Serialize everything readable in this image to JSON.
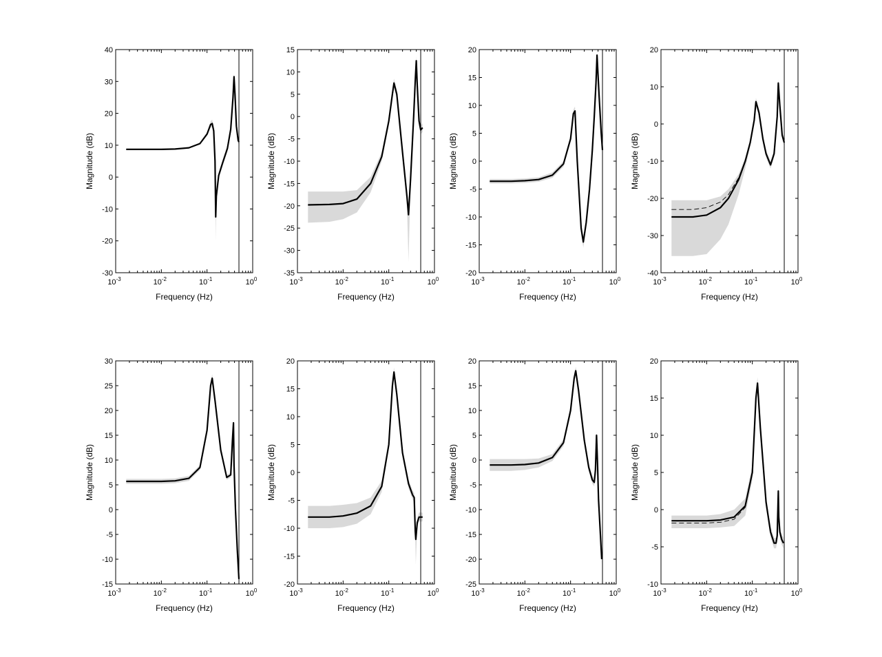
{
  "figure": {
    "xlabel": "Frequency (Hz)",
    "ylabel": "Magnitude (dB)",
    "x_tick_labels": [
      "10^-3",
      "10^-2",
      "10^-1",
      "10^0"
    ],
    "colors": {
      "band": "#d9d9d9",
      "line": "#000000",
      "axes": "#000000",
      "background": "#ffffff"
    }
  },
  "chart_data": [
    {
      "type": "line",
      "xscale": "log",
      "xlim": [
        0.001,
        1
      ],
      "ylim": [
        -30,
        40
      ],
      "yticks": [
        40,
        30,
        20,
        10,
        0,
        -10,
        -20,
        -30
      ],
      "xlabel": "Frequency (Hz)",
      "ylabel": "Magnitude (dB)",
      "vline_x": 0.5,
      "grid": false,
      "x": [
        0.0017,
        0.005,
        0.01,
        0.02,
        0.04,
        0.07,
        0.1,
        0.12,
        0.13,
        0.14,
        0.15,
        0.155,
        0.16,
        0.18,
        0.22,
        0.28,
        0.33,
        0.37,
        0.39,
        0.41,
        0.44,
        0.48,
        0.5
      ],
      "series": [
        {
          "role": "estimate",
          "values": [
            8.7,
            8.7,
            8.7,
            8.8,
            9.2,
            10.5,
            13.5,
            16.5,
            16.8,
            14.5,
            5.0,
            -12.5,
            -6.0,
            0.5,
            4.5,
            9.0,
            15.0,
            25.0,
            31.5,
            26.0,
            16.0,
            11.5,
            11.0
          ]
        },
        {
          "role": "band_upper",
          "values": [
            8.9,
            8.9,
            8.9,
            9.0,
            9.4,
            10.8,
            14.0,
            17.5,
            18.0,
            15.5,
            6.0,
            -8.0,
            -4.5,
            1.5,
            5.5,
            10.0,
            16.0,
            26.0,
            32.5,
            27.0,
            17.0,
            12.5,
            11.5
          ]
        },
        {
          "role": "band_lower",
          "values": [
            8.5,
            8.5,
            8.5,
            8.6,
            9.0,
            10.2,
            13.0,
            15.5,
            15.6,
            13.5,
            4.0,
            -20.0,
            -7.5,
            -0.5,
            3.5,
            8.0,
            14.0,
            24.0,
            30.5,
            25.0,
            15.0,
            10.5,
            10.5
          ]
        }
      ]
    },
    {
      "type": "line",
      "xscale": "log",
      "xlim": [
        0.001,
        1
      ],
      "ylim": [
        -35,
        15
      ],
      "yticks": [
        15,
        10,
        5,
        0,
        -5,
        -10,
        -15,
        -20,
        -25,
        -30,
        -35
      ],
      "xlabel": "Frequency (Hz)",
      "ylabel": "Magnitude (dB)",
      "vline_x": 0.5,
      "grid": false,
      "x": [
        0.0017,
        0.005,
        0.01,
        0.02,
        0.04,
        0.07,
        0.1,
        0.12,
        0.13,
        0.15,
        0.2,
        0.25,
        0.27,
        0.3,
        0.35,
        0.38,
        0.4,
        0.42,
        0.46,
        0.5,
        0.55
      ],
      "series": [
        {
          "role": "estimate",
          "values": [
            -19.8,
            -19.7,
            -19.5,
            -18.5,
            -15.0,
            -9.0,
            -1.0,
            5.0,
            7.5,
            5.0,
            -8.0,
            -18.0,
            -22.0,
            -14.0,
            0.0,
            8.0,
            12.5,
            7.0,
            -1.0,
            -3.0,
            -2.5
          ]
        },
        {
          "role": "band_upper",
          "values": [
            -16.8,
            -16.8,
            -16.8,
            -16.5,
            -13.5,
            -8.0,
            0.0,
            6.0,
            8.5,
            6.0,
            -7.0,
            -17.0,
            -20.0,
            -13.0,
            1.0,
            9.0,
            13.5,
            8.0,
            0.0,
            -2.0,
            -1.5
          ]
        },
        {
          "role": "band_lower",
          "values": [
            -23.8,
            -23.6,
            -23.0,
            -21.5,
            -17.0,
            -10.0,
            -2.0,
            4.0,
            6.5,
            4.0,
            -9.0,
            -20.0,
            -32.5,
            -15.0,
            -1.0,
            7.0,
            11.5,
            6.0,
            -2.0,
            -4.0,
            -3.5
          ]
        }
      ]
    },
    {
      "type": "line",
      "xscale": "log",
      "xlim": [
        0.001,
        1
      ],
      "ylim": [
        -20,
        20
      ],
      "yticks": [
        20,
        15,
        10,
        5,
        0,
        -5,
        -10,
        -15,
        -20
      ],
      "xlabel": "Frequency (Hz)",
      "ylabel": "Magnitude (dB)",
      "vline_x": 0.5,
      "grid": false,
      "x": [
        0.0017,
        0.005,
        0.01,
        0.02,
        0.04,
        0.07,
        0.1,
        0.115,
        0.125,
        0.14,
        0.17,
        0.19,
        0.22,
        0.26,
        0.3,
        0.33,
        0.36,
        0.38,
        0.42,
        0.47,
        0.5
      ],
      "series": [
        {
          "role": "estimate",
          "values": [
            -3.6,
            -3.6,
            -3.5,
            -3.3,
            -2.5,
            -0.5,
            4.0,
            8.5,
            9.0,
            0.0,
            -12.0,
            -14.5,
            -11.0,
            -5.0,
            2.0,
            8.0,
            14.0,
            19.0,
            12.0,
            5.0,
            2.0
          ]
        },
        {
          "role": "band_upper",
          "values": [
            -3.2,
            -3.2,
            -3.1,
            -2.9,
            -2.0,
            0.0,
            4.5,
            9.2,
            9.8,
            0.8,
            -11.0,
            -13.5,
            -10.2,
            -4.3,
            2.7,
            8.7,
            14.7,
            19.7,
            12.7,
            5.7,
            2.7
          ]
        },
        {
          "role": "band_lower",
          "values": [
            -4.0,
            -4.0,
            -3.9,
            -3.7,
            -3.0,
            -1.0,
            3.5,
            7.8,
            8.2,
            -0.8,
            -13.0,
            -15.5,
            -11.8,
            -5.7,
            1.3,
            7.3,
            13.3,
            18.3,
            11.3,
            4.3,
            1.3
          ]
        }
      ]
    },
    {
      "type": "line",
      "xscale": "log",
      "xlim": [
        0.001,
        1
      ],
      "ylim": [
        -40,
        20
      ],
      "yticks": [
        20,
        10,
        0,
        -10,
        -20,
        -30,
        -40
      ],
      "xlabel": "Frequency (Hz)",
      "ylabel": "Magnitude (dB)",
      "vline_x": 0.5,
      "grid": false,
      "x": [
        0.0017,
        0.005,
        0.01,
        0.02,
        0.03,
        0.05,
        0.07,
        0.09,
        0.11,
        0.12,
        0.14,
        0.17,
        0.2,
        0.25,
        0.3,
        0.35,
        0.37,
        0.4,
        0.45,
        0.5
      ],
      "series": [
        {
          "role": "estimate",
          "values": [
            -25.0,
            -25.0,
            -24.5,
            -22.5,
            -20.0,
            -15.0,
            -10.0,
            -5.0,
            1.0,
            6.0,
            3.0,
            -4.0,
            -8.0,
            -11.0,
            -8.0,
            2.0,
            11.0,
            5.0,
            -3.0,
            -5.0
          ]
        },
        {
          "role": "reference",
          "values": [
            -23.0,
            -23.0,
            -22.5,
            -21.0,
            -19.0,
            -14.5,
            -10.0,
            -5.0,
            1.0,
            6.0,
            3.0,
            -4.0,
            -8.0,
            -11.0,
            -8.0,
            2.0,
            11.0,
            5.0,
            -3.0,
            -5.0
          ]
        },
        {
          "role": "band_upper",
          "values": [
            -20.5,
            -20.5,
            -20.5,
            -19.5,
            -17.5,
            -13.5,
            -9.0,
            -4.0,
            2.0,
            7.0,
            4.0,
            -3.0,
            -7.0,
            -10.0,
            -7.0,
            3.0,
            12.0,
            6.0,
            -2.0,
            -4.0
          ]
        },
        {
          "role": "band_lower",
          "values": [
            -35.5,
            -35.5,
            -35.0,
            -31.0,
            -27.0,
            -19.0,
            -12.0,
            -6.0,
            0.0,
            5.0,
            2.0,
            -5.0,
            -9.0,
            -12.0,
            -9.0,
            1.0,
            10.0,
            4.0,
            -4.0,
            -6.0
          ]
        }
      ]
    },
    {
      "type": "line",
      "xscale": "log",
      "xlim": [
        0.001,
        1
      ],
      "ylim": [
        -15,
        30
      ],
      "yticks": [
        30,
        25,
        20,
        15,
        10,
        5,
        0,
        -5,
        -10,
        -15
      ],
      "xlabel": "Frequency (Hz)",
      "ylabel": "Magnitude (dB)",
      "vline_x": 0.5,
      "grid": false,
      "x": [
        0.0017,
        0.005,
        0.01,
        0.02,
        0.04,
        0.07,
        0.1,
        0.12,
        0.13,
        0.15,
        0.2,
        0.27,
        0.33,
        0.36,
        0.38,
        0.39,
        0.42,
        0.46,
        0.5
      ],
      "series": [
        {
          "role": "estimate",
          "values": [
            5.7,
            5.7,
            5.7,
            5.8,
            6.3,
            8.5,
            16.0,
            25.0,
            26.5,
            22.0,
            12.0,
            6.5,
            7.0,
            14.0,
            17.5,
            9.0,
            0.0,
            -8.0,
            -14.0
          ]
        },
        {
          "role": "band_upper",
          "values": [
            6.2,
            6.2,
            6.2,
            6.3,
            6.8,
            9.0,
            16.6,
            25.7,
            27.3,
            22.7,
            12.6,
            7.0,
            7.5,
            14.6,
            18.1,
            9.6,
            0.6,
            -7.4,
            -13.4
          ]
        },
        {
          "role": "band_lower",
          "values": [
            5.2,
            5.2,
            5.2,
            5.3,
            5.8,
            8.0,
            15.4,
            24.3,
            25.7,
            21.3,
            11.4,
            6.0,
            6.5,
            13.4,
            16.9,
            8.4,
            -0.6,
            -8.6,
            -14.6
          ]
        }
      ]
    },
    {
      "type": "line",
      "xscale": "log",
      "xlim": [
        0.001,
        1
      ],
      "ylim": [
        -20,
        20
      ],
      "yticks": [
        20,
        15,
        10,
        5,
        0,
        -5,
        -10,
        -15,
        -20
      ],
      "xlabel": "Frequency (Hz)",
      "ylabel": "Magnitude (dB)",
      "vline_x": 0.5,
      "grid": false,
      "x": [
        0.0017,
        0.005,
        0.01,
        0.02,
        0.04,
        0.07,
        0.1,
        0.12,
        0.13,
        0.15,
        0.2,
        0.27,
        0.33,
        0.36,
        0.38,
        0.39,
        0.42,
        0.46,
        0.5,
        0.55
      ],
      "series": [
        {
          "role": "estimate",
          "values": [
            -8.0,
            -8.0,
            -7.8,
            -7.3,
            -6.0,
            -2.5,
            5.0,
            15.5,
            18.0,
            14.0,
            3.5,
            -2.0,
            -4.0,
            -4.5,
            -10.5,
            -12.0,
            -9.0,
            -8.0,
            -8.0,
            -8.0
          ]
        },
        {
          "role": "band_upper",
          "values": [
            -6.0,
            -6.0,
            -5.8,
            -5.5,
            -4.5,
            -1.5,
            5.8,
            16.3,
            18.8,
            14.8,
            4.3,
            -1.2,
            -3.2,
            -3.7,
            -9.5,
            -11.0,
            -8.2,
            -7.2,
            -7.2,
            -7.2
          ]
        },
        {
          "role": "band_lower",
          "values": [
            -10.0,
            -10.0,
            -9.8,
            -9.2,
            -7.5,
            -3.5,
            4.2,
            14.7,
            17.2,
            13.2,
            2.7,
            -2.8,
            -4.8,
            -5.3,
            -11.5,
            -16.5,
            -9.8,
            -8.8,
            -8.8,
            -8.8
          ]
        }
      ]
    },
    {
      "type": "line",
      "xscale": "log",
      "xlim": [
        0.001,
        1
      ],
      "ylim": [
        -25,
        20
      ],
      "yticks": [
        20,
        15,
        10,
        5,
        0,
        -5,
        -10,
        -15,
        -20,
        -25
      ],
      "xlabel": "Frequency (Hz)",
      "ylabel": "Magnitude (dB)",
      "vline_x": 0.5,
      "grid": false,
      "x": [
        0.0017,
        0.005,
        0.01,
        0.02,
        0.04,
        0.07,
        0.1,
        0.12,
        0.13,
        0.15,
        0.2,
        0.25,
        0.3,
        0.33,
        0.35,
        0.37,
        0.39,
        0.41,
        0.45,
        0.48
      ],
      "series": [
        {
          "role": "estimate",
          "values": [
            -1.0,
            -1.0,
            -0.9,
            -0.6,
            0.5,
            3.5,
            10.0,
            16.5,
            18.0,
            14.0,
            4.0,
            -1.5,
            -4.0,
            -4.5,
            -2.0,
            5.0,
            -1.0,
            -8.0,
            -15.0,
            -20.0
          ]
        },
        {
          "role": "band_upper",
          "values": [
            0.2,
            0.2,
            0.2,
            0.3,
            1.2,
            4.2,
            10.8,
            17.3,
            18.8,
            14.8,
            4.8,
            -0.7,
            -3.2,
            -3.7,
            -1.2,
            5.8,
            -0.2,
            -7.2,
            -14.2,
            -19.2
          ]
        },
        {
          "role": "band_lower",
          "values": [
            -2.2,
            -2.2,
            -2.0,
            -1.5,
            -0.2,
            2.8,
            9.2,
            15.7,
            17.2,
            13.2,
            3.2,
            -2.3,
            -4.8,
            -5.3,
            -2.8,
            4.2,
            -1.8,
            -8.8,
            -15.8,
            -21.0
          ]
        }
      ]
    },
    {
      "type": "line",
      "xscale": "log",
      "xlim": [
        0.001,
        1
      ],
      "ylim": [
        -10,
        20
      ],
      "yticks": [
        20,
        15,
        10,
        5,
        0,
        -5,
        -10
      ],
      "xlabel": "Frequency (Hz)",
      "ylabel": "Magnitude (dB)",
      "vline_x": 0.5,
      "grid": false,
      "x": [
        0.0017,
        0.005,
        0.01,
        0.02,
        0.04,
        0.07,
        0.1,
        0.12,
        0.13,
        0.15,
        0.2,
        0.25,
        0.3,
        0.33,
        0.35,
        0.37,
        0.38,
        0.4,
        0.44,
        0.48
      ],
      "series": [
        {
          "role": "estimate",
          "values": [
            -1.5,
            -1.5,
            -1.5,
            -1.4,
            -1.0,
            0.5,
            5.0,
            15.0,
            17.0,
            11.0,
            1.0,
            -3.0,
            -4.5,
            -4.5,
            -3.5,
            2.5,
            -1.0,
            -3.0,
            -4.0,
            -4.5
          ]
        },
        {
          "role": "reference",
          "values": [
            -1.8,
            -1.8,
            -1.8,
            -1.7,
            -1.3,
            0.3,
            5.0,
            15.0,
            17.0,
            11.0,
            1.0,
            -3.0,
            -4.5,
            -4.5,
            -3.5,
            2.5,
            -1.0,
            -3.0,
            -4.0,
            -4.5
          ]
        },
        {
          "role": "band_upper",
          "values": [
            -0.8,
            -0.8,
            -0.8,
            -0.6,
            0.0,
            1.5,
            6.0,
            15.8,
            17.8,
            11.8,
            1.8,
            -2.3,
            -3.8,
            -3.8,
            -2.8,
            3.2,
            -0.3,
            -2.3,
            -3.3,
            -3.8
          ]
        },
        {
          "role": "band_lower",
          "values": [
            -2.5,
            -2.5,
            -2.5,
            -2.4,
            -2.2,
            -0.8,
            4.0,
            14.2,
            16.2,
            10.2,
            0.2,
            -3.7,
            -5.2,
            -5.2,
            -4.2,
            1.8,
            -1.7,
            -3.7,
            -4.7,
            -5.2
          ]
        }
      ]
    }
  ]
}
